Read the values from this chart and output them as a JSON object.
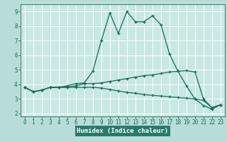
{
  "xlabel": "Humidex (Indice chaleur)",
  "xlim": [
    -0.5,
    23.5
  ],
  "ylim": [
    1.8,
    9.5
  ],
  "yticks": [
    2,
    3,
    4,
    5,
    6,
    7,
    8,
    9
  ],
  "xticks": [
    0,
    1,
    2,
    3,
    4,
    5,
    6,
    7,
    8,
    9,
    10,
    11,
    12,
    13,
    14,
    15,
    16,
    17,
    18,
    19,
    20,
    21,
    22,
    23
  ],
  "bg_color": "#b8ddd8",
  "plot_bg_color": "#c8e8e4",
  "label_bg_color": "#2a7a6a",
  "line_color": "#1a6858",
  "grid_color": "#ffffff",
  "line1_y": [
    3.8,
    3.5,
    3.6,
    3.8,
    3.8,
    3.8,
    3.9,
    4.05,
    4.05,
    4.1,
    4.2,
    4.3,
    4.4,
    4.5,
    4.6,
    4.65,
    4.75,
    4.85,
    4.9,
    4.95,
    4.85,
    3.0,
    2.4,
    2.6
  ],
  "line2_y": [
    3.8,
    3.5,
    3.6,
    3.8,
    3.8,
    3.9,
    4.05,
    4.1,
    4.9,
    7.0,
    8.9,
    7.5,
    9.0,
    8.3,
    8.3,
    8.7,
    8.1,
    6.1,
    4.9,
    3.9,
    3.0,
    2.55,
    2.3,
    2.6
  ],
  "line3_y": [
    3.8,
    3.5,
    3.6,
    3.8,
    3.8,
    3.8,
    3.8,
    3.8,
    3.8,
    3.75,
    3.65,
    3.55,
    3.45,
    3.4,
    3.3,
    3.25,
    3.2,
    3.15,
    3.1,
    3.05,
    3.0,
    2.9,
    2.4,
    2.6
  ],
  "tick_fontsize": 5.5,
  "xlabel_fontsize": 6.5
}
